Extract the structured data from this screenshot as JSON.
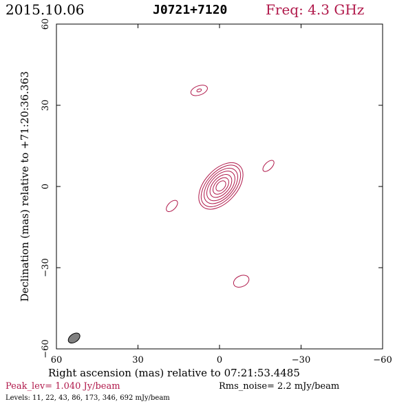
{
  "header": {
    "date": "2015.10.06",
    "source": "J0721+7120",
    "freq": "Freq: 4.3 GHz"
  },
  "colors": {
    "contour": "#b0184a",
    "freq_text": "#b0184a",
    "peak_text": "#b0184a",
    "beam_fill": "#808080",
    "axis": "#000000"
  },
  "chart_data": {
    "type": "contour",
    "xlabel": "Right ascension (mas) relative to 07:21:53.4485",
    "ylabel": "Declination (mas) relative to +71:20:36.363",
    "xlim": [
      60,
      -60
    ],
    "ylim": [
      -60,
      60
    ],
    "xticks": [
      60,
      30,
      0,
      -30,
      -60
    ],
    "yticks": [
      -60,
      -30,
      0,
      30,
      60
    ],
    "xtick_labels": [
      "60",
      "30",
      "0",
      "−30",
      "−60"
    ],
    "ytick_labels": [
      "−60",
      "−30",
      "0",
      "30",
      "60"
    ],
    "contour_levels_mJy": [
      11,
      22,
      43,
      86,
      173,
      346,
      692
    ],
    "core": {
      "x": -0.5,
      "y": 0.2,
      "rings": [
        {
          "level": 11,
          "rx": 6.0,
          "ry": 10.2
        },
        {
          "level": 22,
          "rx": 5.2,
          "ry": 9.2
        },
        {
          "level": 43,
          "rx": 4.5,
          "ry": 7.8
        },
        {
          "level": 86,
          "rx": 3.8,
          "ry": 6.5
        },
        {
          "level": 173,
          "rx": 3.0,
          "ry": 5.0
        },
        {
          "level": 346,
          "rx": 2.2,
          "ry": 3.6
        },
        {
          "level": 692,
          "rx": 1.4,
          "ry": 2.2
        }
      ],
      "pa_deg": 42
    },
    "components": [
      {
        "x": 7.5,
        "y": 35.5,
        "rx": 1.7,
        "ry": 3.2,
        "pa_deg": 70
      },
      {
        "x": 7.5,
        "y": 35.5,
        "rx": 0.5,
        "ry": 0.9,
        "pa_deg": 70
      },
      {
        "x": -18.0,
        "y": 7.6,
        "rx": 1.3,
        "ry": 2.6,
        "pa_deg": 45
      },
      {
        "x": 17.5,
        "y": -7.2,
        "rx": 1.4,
        "ry": 2.6,
        "pa_deg": 45
      },
      {
        "x": -8.0,
        "y": -35.0,
        "rx": 2.0,
        "ry": 3.0,
        "pa_deg": 65
      }
    ],
    "beam": {
      "x": 53.5,
      "y": -56.0,
      "major": 2.4,
      "minor": 1.5,
      "pa_deg": 55
    }
  },
  "footer": {
    "peak": "Peak_lev=  1.040 Jy/beam",
    "rms": "Rms_noise=  2.2 mJy/beam",
    "levels": "Levels:  11,  22,  43,  86,  173,  346,  692  mJy/beam"
  }
}
